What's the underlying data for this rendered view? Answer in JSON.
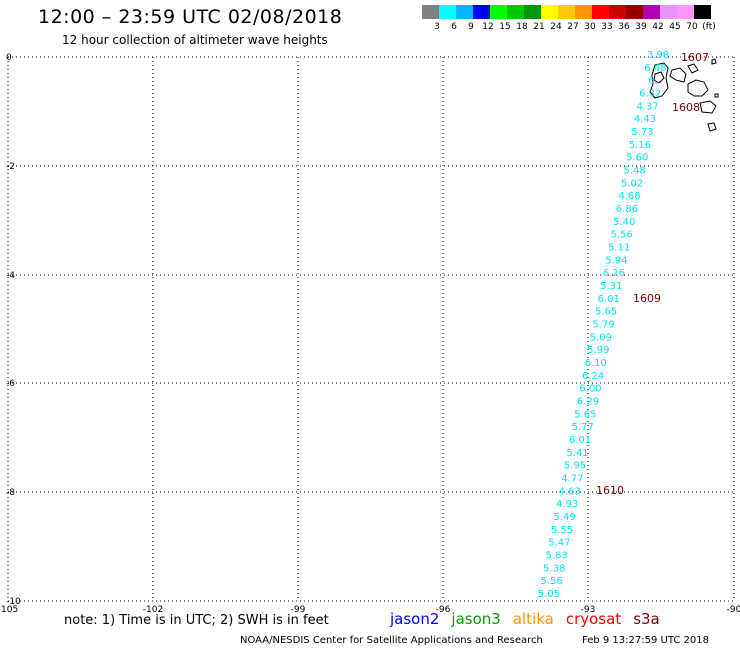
{
  "header": {
    "title": "12:00 – 23:59 UTC 02/08/2018",
    "subtitle": "12 hour collection of altimeter wave heights"
  },
  "legend": {
    "colors": [
      "#808080",
      "#00ffff",
      "#00b4ff",
      "#0000ff",
      "#00ff00",
      "#00c800",
      "#009600",
      "#ffff00",
      "#ffc800",
      "#ff9600",
      "#ff0000",
      "#c80000",
      "#960000",
      "#b400b4",
      "#e696ff",
      "#ff96ff",
      "#000000"
    ],
    "labels": [
      "3",
      "6",
      "9",
      "12",
      "15",
      "18",
      "21",
      "24",
      "27",
      "30",
      "33",
      "36",
      "39",
      "42",
      "45",
      "70",
      "(ft)"
    ]
  },
  "axes": {
    "x_ticks": [
      "-105",
      "-102",
      "-99",
      "-96",
      "-93",
      "-90"
    ],
    "y_ticks": [
      "0",
      "-2",
      "-4",
      "-6",
      "-8",
      "-10"
    ]
  },
  "track": {
    "color": "#00e5ee",
    "label_color": "#7a0000",
    "wave_heights": [
      "3.98",
      "6.48",
      "6.",
      "6.32",
      "4.37",
      "4.43",
      "5.73",
      "5.16",
      "5.60",
      "5.48",
      "5.02",
      "4.68",
      "6.86",
      "5.40",
      "5.56",
      "5.11",
      "5.94",
      "6.26",
      "5.31",
      "6.01",
      "5.65",
      "5.79",
      "5.09",
      "5.99",
      "6.10",
      "6.24",
      "6.00",
      "6.29",
      "5.65",
      "5.77",
      "6.01",
      "5.41",
      "5.95",
      "4.77",
      "4.63",
      "4.93",
      "5.49",
      "5.55",
      "5.47",
      "5.83",
      "5.38",
      "5.56",
      "5.05"
    ],
    "time_labels": [
      "1607",
      "1608",
      "1609",
      "1610"
    ]
  },
  "footer": {
    "note": "note: 1) Time is in UTC; 2) SWH is in feet",
    "satellites": [
      {
        "name": "jason2",
        "color": "#0000ff"
      },
      {
        "name": "jason3",
        "color": "#00a000"
      },
      {
        "name": "altika",
        "color": "#ff9600"
      },
      {
        "name": "cryosat",
        "color": "#ff0000"
      },
      {
        "name": "s3a",
        "color": "#7a0000"
      }
    ],
    "credit": "NOAA/NESDIS Center for Satellite Applications and Research",
    "timestamp": "Feb  9 13:27:59 UTC 2018"
  }
}
